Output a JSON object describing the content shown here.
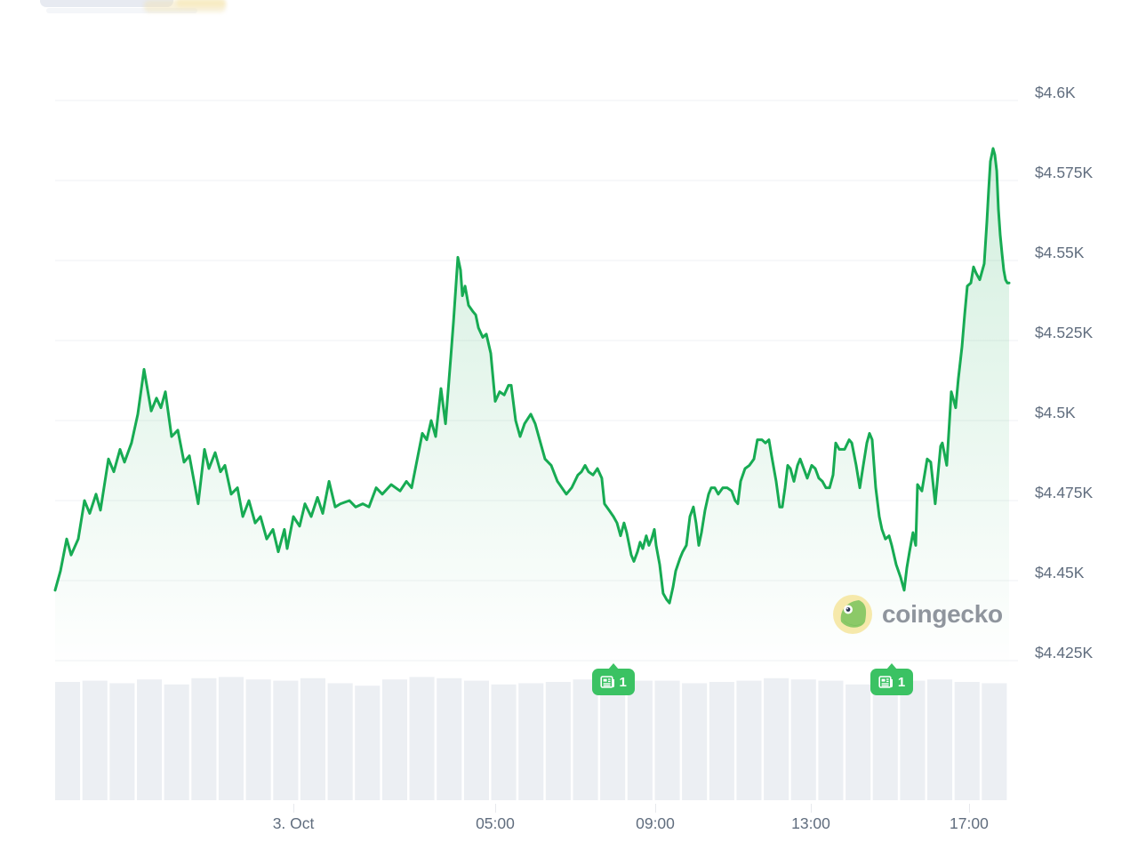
{
  "watermark": {
    "text": "coingecko"
  },
  "colors": {
    "line": "#17ab53",
    "area_top": "rgba(25,171,85,0.20)",
    "area_bottom": "rgba(25,171,85,0)",
    "grid": "#eff1f4",
    "volume": "#eceff3",
    "axis_text": "#606d7e",
    "badge": "#3bc263",
    "badge_text": "#ffffff",
    "logo_text": "#8f959d",
    "logo_circle": "#f6e9ab",
    "logo_gecko": "#8cc968"
  },
  "chart_data": {
    "type": "area",
    "title": "24h price chart with volume",
    "currency": "USD",
    "ylim": [
      4420,
      4605
    ],
    "grid": "horizontal",
    "y_axis": {
      "ticks": [
        {
          "label": "$4.6K",
          "value": 4600
        },
        {
          "label": "$4.575K",
          "value": 4575
        },
        {
          "label": "$4.55K",
          "value": 4550
        },
        {
          "label": "$4.525K",
          "value": 4525
        },
        {
          "label": "$4.5K",
          "value": 4500
        },
        {
          "label": "$4.475K",
          "value": 4475
        },
        {
          "label": "$4.45K",
          "value": 4450
        },
        {
          "label": "$4.425K",
          "value": 4425
        }
      ]
    },
    "x_axis": {
      "ticks": [
        {
          "label": "3. Oct",
          "t": 0.2498
        },
        {
          "label": "05:00",
          "t": 0.4613
        },
        {
          "label": "09:00",
          "t": 0.6291
        },
        {
          "label": "13:00",
          "t": 0.7922
        },
        {
          "label": "17:00",
          "t": 0.958
        }
      ]
    },
    "news_markers": [
      {
        "t": 0.585,
        "count": "1"
      },
      {
        "t": 0.877,
        "count": "1"
      }
    ],
    "series": [
      {
        "name": "price",
        "points": [
          [
            0,
            4447
          ],
          [
            0.0056,
            4453
          ],
          [
            0.0121,
            4463
          ],
          [
            0.0168,
            4458
          ],
          [
            0.0242,
            4463
          ],
          [
            0.0308,
            4475
          ],
          [
            0.0363,
            4471
          ],
          [
            0.0429,
            4477
          ],
          [
            0.0475,
            4472
          ],
          [
            0.0559,
            4488
          ],
          [
            0.0615,
            4484
          ],
          [
            0.068,
            4491
          ],
          [
            0.0727,
            4487
          ],
          [
            0.0801,
            4493
          ],
          [
            0.0867,
            4502
          ],
          [
            0.0932,
            4516
          ],
          [
            0.1007,
            4503
          ],
          [
            0.1062,
            4507
          ],
          [
            0.1109,
            4504
          ],
          [
            0.1156,
            4509
          ],
          [
            0.1221,
            4495
          ],
          [
            0.1286,
            4497
          ],
          [
            0.1351,
            4487
          ],
          [
            0.1407,
            4489
          ],
          [
            0.15,
            4474
          ],
          [
            0.1566,
            4491
          ],
          [
            0.1612,
            4485
          ],
          [
            0.1678,
            4490
          ],
          [
            0.1733,
            4484
          ],
          [
            0.178,
            4486
          ],
          [
            0.1845,
            4477
          ],
          [
            0.1911,
            4479
          ],
          [
            0.1967,
            4470
          ],
          [
            0.2032,
            4475
          ],
          [
            0.2097,
            4468
          ],
          [
            0.2153,
            4470
          ],
          [
            0.2218,
            4463
          ],
          [
            0.2283,
            4466
          ],
          [
            0.2339,
            4459
          ],
          [
            0.2404,
            4466
          ],
          [
            0.2432,
            4460
          ],
          [
            0.2498,
            4470
          ],
          [
            0.2563,
            4467
          ],
          [
            0.2619,
            4474
          ],
          [
            0.2684,
            4470
          ],
          [
            0.275,
            4476
          ],
          [
            0.2805,
            4471
          ],
          [
            0.2871,
            4481
          ],
          [
            0.2936,
            4473
          ],
          [
            0.2992,
            4474
          ],
          [
            0.3085,
            4475
          ],
          [
            0.315,
            4473
          ],
          [
            0.3225,
            4474
          ],
          [
            0.329,
            4473
          ],
          [
            0.3365,
            4479
          ],
          [
            0.343,
            4477
          ],
          [
            0.3523,
            4480
          ],
          [
            0.3616,
            4478
          ],
          [
            0.3682,
            4481
          ],
          [
            0.3737,
            4479
          ],
          [
            0.3849,
            4496
          ],
          [
            0.3896,
            4494
          ],
          [
            0.3942,
            4500
          ],
          [
            0.3989,
            4495
          ],
          [
            0.4045,
            4510
          ],
          [
            0.4092,
            4499
          ],
          [
            0.4148,
            4520
          ],
          [
            0.4176,
            4531
          ],
          [
            0.4222,
            4551
          ],
          [
            0.425,
            4547
          ],
          [
            0.4269,
            4539
          ],
          [
            0.4297,
            4542
          ],
          [
            0.4334,
            4536
          ],
          [
            0.4381,
            4534
          ],
          [
            0.4409,
            4533
          ],
          [
            0.4437,
            4529
          ],
          [
            0.4483,
            4526
          ],
          [
            0.452,
            4527
          ],
          [
            0.4567,
            4521
          ],
          [
            0.4613,
            4506
          ],
          [
            0.466,
            4509
          ],
          [
            0.4707,
            4508
          ],
          [
            0.4753,
            4511
          ],
          [
            0.4781,
            4511
          ],
          [
            0.4828,
            4500
          ],
          [
            0.4874,
            4495
          ],
          [
            0.4921,
            4499
          ],
          [
            0.4986,
            4502
          ],
          [
            0.5033,
            4499
          ],
          [
            0.5079,
            4494
          ],
          [
            0.5135,
            4488
          ],
          [
            0.52,
            4486
          ],
          [
            0.5266,
            4481
          ],
          [
            0.5359,
            4477
          ],
          [
            0.5415,
            4479
          ],
          [
            0.548,
            4483
          ],
          [
            0.5517,
            4484
          ],
          [
            0.5555,
            4486
          ],
          [
            0.5592,
            4484
          ],
          [
            0.5638,
            4483
          ],
          [
            0.5685,
            4485
          ],
          [
            0.5731,
            4482
          ],
          [
            0.5759,
            4474
          ],
          [
            0.5806,
            4472
          ],
          [
            0.5853,
            4470
          ],
          [
            0.589,
            4468
          ],
          [
            0.5927,
            4464
          ],
          [
            0.5964,
            4468
          ],
          [
            0.5992,
            4465
          ],
          [
            0.6039,
            4458
          ],
          [
            0.6067,
            4456
          ],
          [
            0.6104,
            4459
          ],
          [
            0.6132,
            4462
          ],
          [
            0.616,
            4460
          ],
          [
            0.6197,
            4464
          ],
          [
            0.6225,
            4461
          ],
          [
            0.6253,
            4463
          ],
          [
            0.6281,
            4466
          ],
          [
            0.63,
            4461
          ],
          [
            0.6337,
            4455
          ],
          [
            0.6374,
            4446
          ],
          [
            0.6412,
            4444
          ],
          [
            0.644,
            4443
          ],
          [
            0.6477,
            4448
          ],
          [
            0.6505,
            4453
          ],
          [
            0.6551,
            4457
          ],
          [
            0.6579,
            4459
          ],
          [
            0.6617,
            4461
          ],
          [
            0.6654,
            4470
          ],
          [
            0.6691,
            4473
          ],
          [
            0.6719,
            4468
          ],
          [
            0.6747,
            4461
          ],
          [
            0.6775,
            4465
          ],
          [
            0.6813,
            4472
          ],
          [
            0.685,
            4477
          ],
          [
            0.6878,
            4479
          ],
          [
            0.6915,
            4479
          ],
          [
            0.6952,
            4477
          ],
          [
            0.6999,
            4479
          ],
          [
            0.7045,
            4479
          ],
          [
            0.7092,
            4478
          ],
          [
            0.7129,
            4475
          ],
          [
            0.7157,
            4474
          ],
          [
            0.7185,
            4481
          ],
          [
            0.7232,
            4485
          ],
          [
            0.7278,
            4486
          ],
          [
            0.7325,
            4488
          ],
          [
            0.7362,
            4494
          ],
          [
            0.7409,
            4494
          ],
          [
            0.7446,
            4493
          ],
          [
            0.7483,
            4494
          ],
          [
            0.7511,
            4489
          ],
          [
            0.7558,
            4481
          ],
          [
            0.7595,
            4473
          ],
          [
            0.7623,
            4473
          ],
          [
            0.7651,
            4479
          ],
          [
            0.7679,
            4486
          ],
          [
            0.7707,
            4485
          ],
          [
            0.7745,
            4481
          ],
          [
            0.7782,
            4486
          ],
          [
            0.781,
            4488
          ],
          [
            0.7847,
            4485
          ],
          [
            0.7884,
            4482
          ],
          [
            0.7931,
            4486
          ],
          [
            0.7968,
            4485
          ],
          [
            0.8006,
            4482
          ],
          [
            0.8043,
            4481
          ],
          [
            0.808,
            4479
          ],
          [
            0.8118,
            4479
          ],
          [
            0.8155,
            4483
          ],
          [
            0.8183,
            4493
          ],
          [
            0.822,
            4491
          ],
          [
            0.8276,
            4491
          ],
          [
            0.8323,
            4494
          ],
          [
            0.8351,
            4493
          ],
          [
            0.8397,
            4486
          ],
          [
            0.8435,
            4479
          ],
          [
            0.8472,
            4486
          ],
          [
            0.8509,
            4493
          ],
          [
            0.8537,
            4496
          ],
          [
            0.8565,
            4494
          ],
          [
            0.8602,
            4479
          ],
          [
            0.8639,
            4470
          ],
          [
            0.8667,
            4466
          ],
          [
            0.8704,
            4463
          ],
          [
            0.8742,
            4464
          ],
          [
            0.877,
            4461
          ],
          [
            0.8816,
            4455
          ],
          [
            0.8863,
            4451
          ],
          [
            0.89,
            4447
          ],
          [
            0.8928,
            4454
          ],
          [
            0.8956,
            4459
          ],
          [
            0.8993,
            4465
          ],
          [
            0.9021,
            4461
          ],
          [
            0.904,
            4480
          ],
          [
            0.9086,
            4478
          ],
          [
            0.9142,
            4488
          ],
          [
            0.9179,
            4487
          ],
          [
            0.9226,
            4474
          ],
          [
            0.9282,
            4492
          ],
          [
            0.93,
            4493
          ],
          [
            0.9347,
            4486
          ],
          [
            0.9394,
            4509
          ],
          [
            0.9422,
            4506
          ],
          [
            0.944,
            4504
          ],
          [
            0.9468,
            4513
          ],
          [
            0.9506,
            4523
          ],
          [
            0.9534,
            4533
          ],
          [
            0.9562,
            4542
          ],
          [
            0.9599,
            4543
          ],
          [
            0.9627,
            4548
          ],
          [
            0.9655,
            4546
          ],
          [
            0.9692,
            4544
          ],
          [
            0.972,
            4547
          ],
          [
            0.9739,
            4549
          ],
          [
            0.9767,
            4562
          ],
          [
            0.9786,
            4572
          ],
          [
            0.9804,
            4581
          ],
          [
            0.9832,
            4585
          ],
          [
            0.9851,
            4583
          ],
          [
            0.987,
            4578
          ],
          [
            0.9888,
            4566
          ],
          [
            0.9907,
            4558
          ],
          [
            0.9926,
            4552
          ],
          [
            0.9944,
            4547
          ],
          [
            0.9963,
            4544
          ],
          [
            0.9981,
            4543
          ],
          [
            1,
            4543
          ]
        ]
      }
    ],
    "volume": [
      0.95,
      0.96,
      0.94,
      0.97,
      0.93,
      0.98,
      0.99,
      0.97,
      0.96,
      0.98,
      0.94,
      0.92,
      0.97,
      0.99,
      0.98,
      0.96,
      0.93,
      0.94,
      0.95,
      0.97,
      0.99,
      0.96,
      0.96,
      0.94,
      0.95,
      0.96,
      0.98,
      0.97,
      0.96,
      0.93,
      0.94,
      0.96,
      0.97,
      0.95,
      0.94
    ]
  }
}
